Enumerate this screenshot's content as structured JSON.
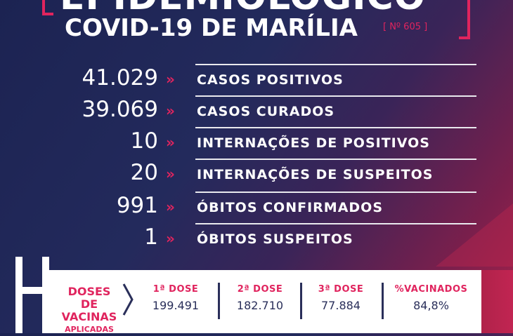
{
  "header": {
    "title_top": "EPIDEMIOLÓGICO",
    "subtitle": "COVID-19 DE MARÍLIA",
    "edition": "[ Nº 605 ]"
  },
  "arrow_glyph": "»",
  "stats": [
    {
      "value": "41.029",
      "label": "CASOS POSITIVOS"
    },
    {
      "value": "39.069",
      "label": "CASOS CURADOS"
    },
    {
      "value": "10",
      "label": "INTERNAÇÕES DE POSITIVOS"
    },
    {
      "value": "20",
      "label": "INTERNAÇÕES DE SUSPEITOS"
    },
    {
      "value": "991",
      "label": "ÓBITOS CONFIRMADOS"
    },
    {
      "value": "1",
      "label": "ÓBITOS SUSPEITOS"
    }
  ],
  "vaccines": {
    "heading_line1": "DOSES DE",
    "heading_line2": "VACINAS",
    "heading_line3": "APLICADAS",
    "columns": [
      {
        "label": "1ª DOSE",
        "value": "199.491"
      },
      {
        "label": "2ª DOSE",
        "value": "182.710"
      },
      {
        "label": "3ª DOSE",
        "value": "77.884"
      },
      {
        "label": "%VACINADOS",
        "value": "84,8%"
      }
    ]
  },
  "colors": {
    "accent": "#e0245e",
    "navy": "#1c2352",
    "panel_text": "#2a2f5a"
  }
}
